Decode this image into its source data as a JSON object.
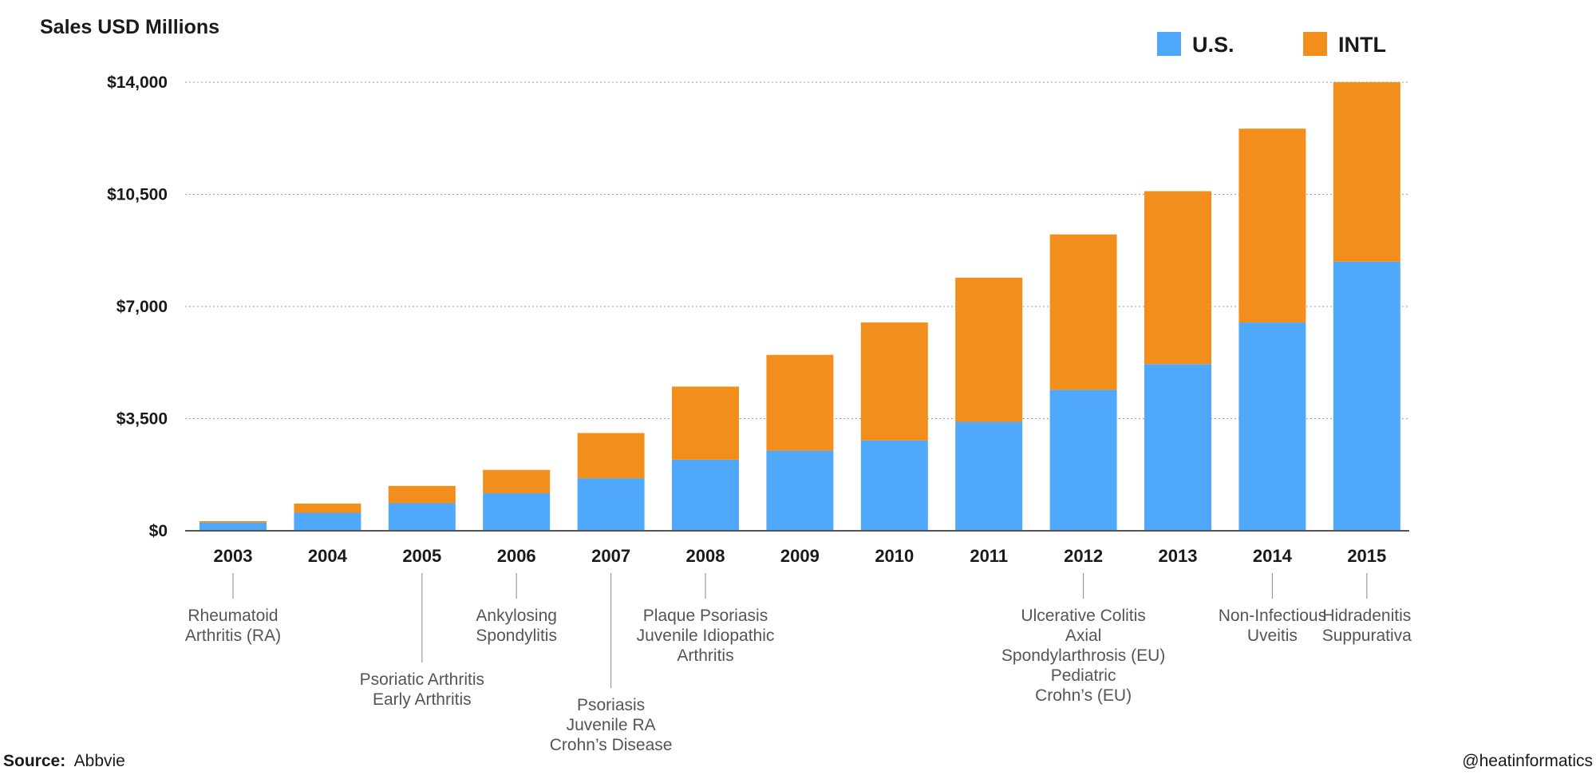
{
  "chart_data": {
    "type": "bar",
    "stacked": true,
    "ylabel": "Sales USD Millions",
    "ylim": [
      0,
      14000
    ],
    "yticks": [
      0,
      3500,
      7000,
      10500,
      14000
    ],
    "ytick_labels": [
      "$0",
      "$3,500",
      "$7,000",
      "$10,500",
      "$14,000"
    ],
    "grid": true,
    "legend_position": "top-right",
    "categories": [
      "2003",
      "2004",
      "2005",
      "2006",
      "2007",
      "2008",
      "2009",
      "2010",
      "2011",
      "2012",
      "2013",
      "2014",
      "2015"
    ],
    "series": [
      {
        "name": "U.S.",
        "color": "#4fa8f9",
        "values": [
          250,
          560,
          860,
          1170,
          1640,
          2220,
          2500,
          2820,
          3400,
          4400,
          5200,
          6500,
          8400
        ]
      },
      {
        "name": "INTL",
        "color": "#f28f1c",
        "values": [
          50,
          290,
          540,
          730,
          1410,
          2280,
          2990,
          3680,
          4500,
          4850,
          5400,
          6050,
          5600
        ]
      }
    ],
    "annotations": [
      {
        "category": "2003",
        "lines": [
          "Rheumatoid",
          "Arthritis (RA)"
        ]
      },
      {
        "category": "2005",
        "lines": [
          "Psoriatic Arthritis",
          "Early Arthritis"
        ]
      },
      {
        "category": "2006",
        "lines": [
          "Ankylosing",
          "Spondylitis"
        ]
      },
      {
        "category": "2007",
        "lines": [
          "Psoriasis",
          "Juvenile RA",
          "Crohn’s Disease"
        ]
      },
      {
        "category": "2008",
        "lines": [
          "Plaque Psoriasis",
          "Juvenile Idiopathic",
          "Arthritis"
        ]
      },
      {
        "category": "2012",
        "lines": [
          "Ulcerative Colitis",
          "Axial",
          "Spondylarthrosis (EU)",
          "Pediatric",
          "Crohn’s (EU)"
        ]
      },
      {
        "category": "2014",
        "lines": [
          "Non-Infectious",
          "Uveitis"
        ]
      },
      {
        "category": "2015",
        "lines": [
          "Hidradenitis",
          "Suppurativa"
        ]
      }
    ]
  },
  "footer": {
    "source_label": "Source:",
    "source_value": "Abbvie",
    "credit": "@heatinformatics"
  }
}
